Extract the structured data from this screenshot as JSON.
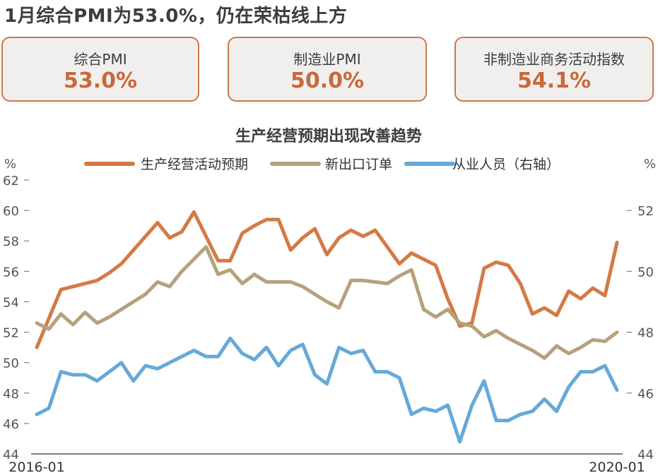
{
  "headline": "1月综合PMI为53.0%，仍在荣枯线上方",
  "cards": [
    {
      "label": "综合PMI",
      "value": "53.0%"
    },
    {
      "label": "制造业PMI",
      "value": "50.0%"
    },
    {
      "label": "非制造业商务活动指数",
      "value": "54.1%"
    }
  ],
  "chart_data": {
    "type": "line",
    "title": "生产经营预期出现改善趋势",
    "y_left_unit": "%",
    "y_right_unit": "%",
    "y_left_range": [
      44,
      62
    ],
    "y_left_ticks": [
      "44",
      "46",
      "48",
      "50",
      "52",
      "54",
      "56",
      "58",
      "60",
      "62"
    ],
    "y_right_range": [
      44,
      53
    ],
    "y_right_ticks": [
      "44",
      "46",
      "48",
      "50",
      "52"
    ],
    "x_range": [
      "2016-01",
      "2020-01"
    ],
    "x_tick_labels": [
      "2016-01",
      "2020-01"
    ],
    "x": [
      "2016-01",
      "2016-02",
      "2016-03",
      "2016-04",
      "2016-05",
      "2016-06",
      "2016-07",
      "2016-08",
      "2016-09",
      "2016-10",
      "2016-11",
      "2016-12",
      "2017-01",
      "2017-02",
      "2017-03",
      "2017-04",
      "2017-05",
      "2017-06",
      "2017-07",
      "2017-08",
      "2017-09",
      "2017-10",
      "2017-11",
      "2017-12",
      "2018-01",
      "2018-02",
      "2018-03",
      "2018-04",
      "2018-05",
      "2018-06",
      "2018-07",
      "2018-08",
      "2018-09",
      "2018-10",
      "2018-11",
      "2018-12",
      "2019-01",
      "2019-02",
      "2019-03",
      "2019-04",
      "2019-05",
      "2019-06",
      "2019-07",
      "2019-08",
      "2019-09",
      "2019-10",
      "2019-11",
      "2019-12",
      "2020-01"
    ],
    "legend_position": "top",
    "grid": false,
    "series": [
      {
        "name": "生产经营活动预期",
        "axis": "left",
        "color": "#d47a45",
        "values": [
          51.0,
          52.9,
          54.8,
          55.0,
          55.2,
          55.4,
          55.9,
          56.5,
          57.4,
          58.3,
          59.2,
          58.2,
          58.6,
          59.9,
          58.3,
          56.7,
          56.7,
          58.5,
          59.0,
          59.4,
          59.4,
          57.4,
          58.2,
          58.8,
          57.1,
          58.2,
          58.7,
          58.3,
          58.7,
          57.6,
          56.5,
          57.2,
          56.8,
          56.4,
          54.2,
          52.4,
          52.6,
          56.2,
          56.6,
          56.4,
          55.2,
          53.2,
          53.6,
          53.1,
          54.7,
          54.2,
          54.9,
          54.4,
          57.9
        ]
      },
      {
        "name": "新出口订单",
        "axis": "left",
        "color": "#b5a17c",
        "values": [
          52.6,
          52.2,
          53.2,
          52.5,
          53.3,
          52.6,
          53.0,
          53.5,
          54.0,
          54.5,
          55.3,
          55.0,
          56.0,
          56.8,
          57.6,
          55.8,
          56.1,
          55.2,
          55.8,
          55.3,
          55.3,
          55.3,
          55.0,
          54.5,
          54.0,
          53.6,
          55.4,
          55.4,
          55.3,
          55.2,
          55.7,
          56.1,
          53.5,
          53.0,
          53.5,
          52.6,
          52.4,
          51.7,
          52.1,
          51.6,
          51.2,
          50.8,
          50.3,
          51.1,
          50.6,
          51.0,
          51.5,
          51.4,
          52.0
        ]
      },
      {
        "name": "从业人员（右轴）",
        "axis": "right",
        "color": "#66a9d9",
        "values": [
          45.3,
          45.5,
          46.7,
          46.6,
          46.6,
          46.4,
          46.7,
          47.0,
          46.4,
          46.9,
          46.8,
          47.0,
          47.2,
          47.4,
          47.2,
          47.2,
          47.8,
          47.3,
          47.1,
          47.5,
          46.9,
          47.4,
          47.6,
          46.6,
          46.3,
          47.5,
          47.3,
          47.4,
          46.7,
          46.7,
          46.5,
          45.3,
          45.5,
          45.4,
          45.6,
          44.4,
          45.6,
          46.4,
          45.1,
          45.1,
          45.3,
          45.4,
          45.8,
          45.4,
          46.2,
          46.7,
          46.7,
          46.9,
          46.1
        ]
      }
    ]
  }
}
